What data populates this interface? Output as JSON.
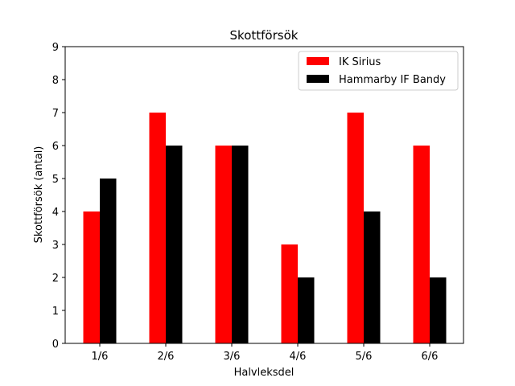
{
  "chart_data": {
    "type": "bar",
    "title": "Skottförsök",
    "xlabel": "Halvleksdel",
    "ylabel": "Skottförsök (antal)",
    "categories": [
      "1/6",
      "2/6",
      "3/6",
      "4/6",
      "5/6",
      "6/6"
    ],
    "ylim": [
      0,
      9
    ],
    "yticks": [
      0,
      1,
      2,
      3,
      4,
      5,
      6,
      7,
      8,
      9
    ],
    "grid": false,
    "legend_position": "top-right",
    "series": [
      {
        "name": "IK Sirius",
        "color": "#ff0000",
        "values": [
          4,
          7,
          6,
          3,
          7,
          6
        ]
      },
      {
        "name": "Hammarby IF Bandy",
        "color": "#000000",
        "values": [
          5,
          6,
          6,
          2,
          4,
          2
        ]
      }
    ]
  }
}
